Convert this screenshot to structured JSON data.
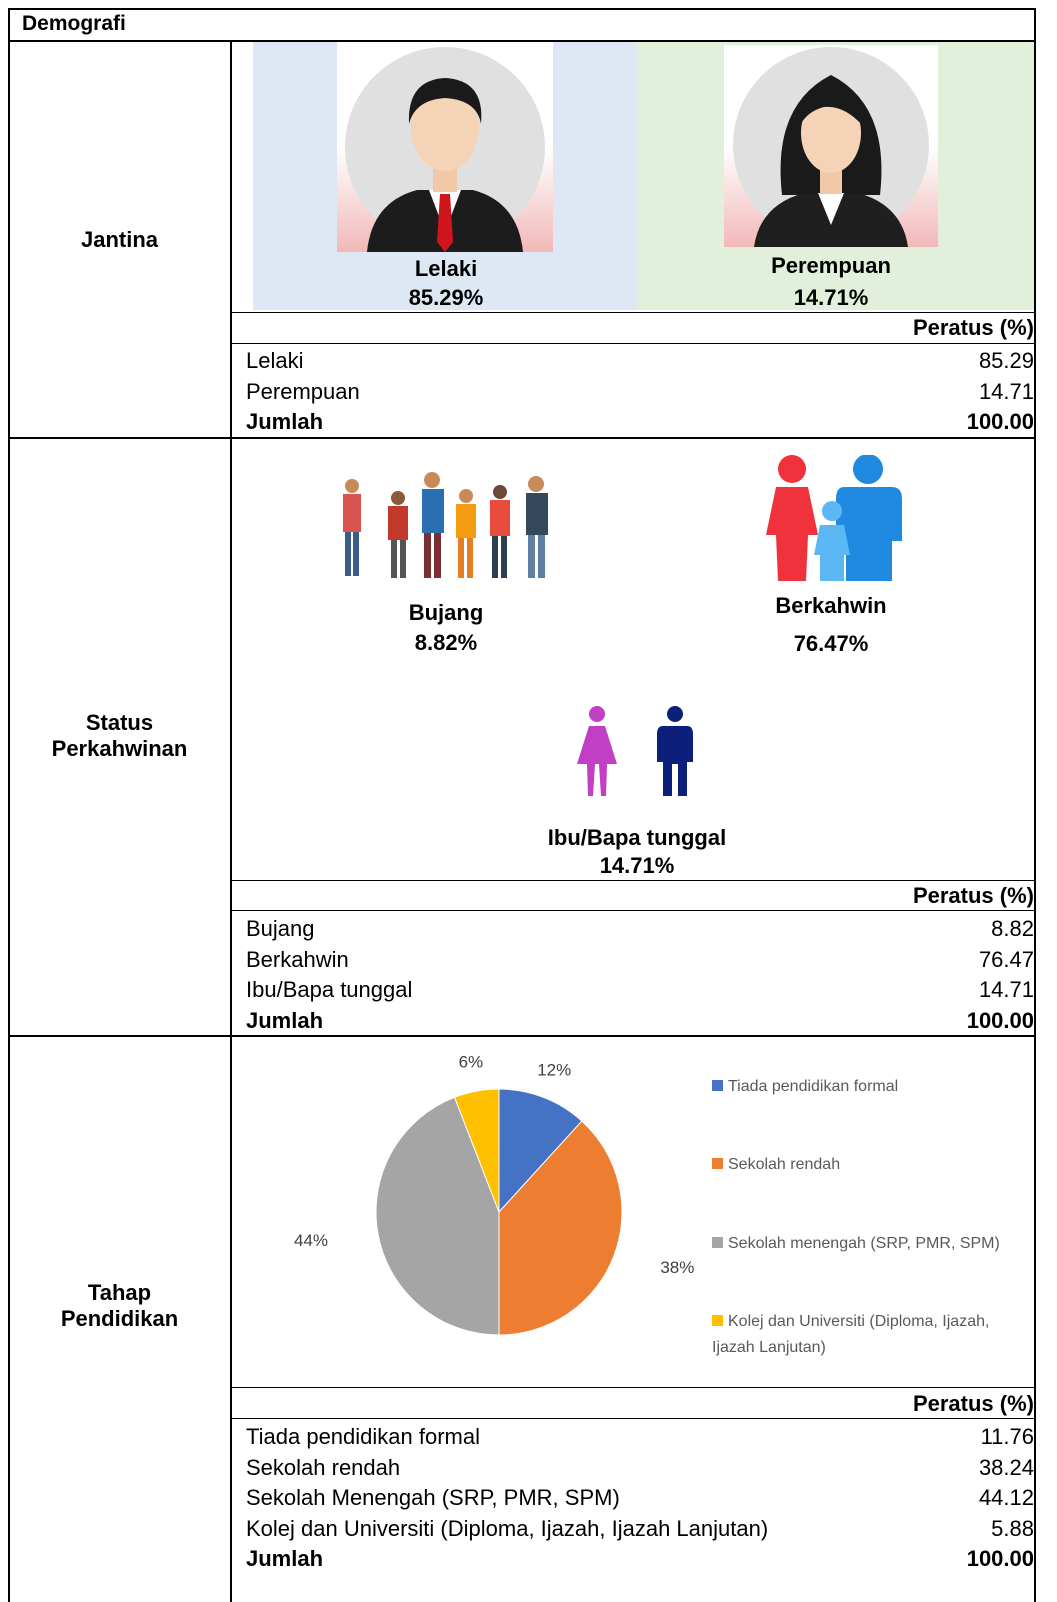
{
  "header": "Demografi",
  "sections": [
    {
      "label": "Jantina",
      "items": [
        {
          "label": "Lelaki",
          "percent": "85.29%"
        },
        {
          "label": "Perempuan",
          "percent": "14.71%"
        }
      ],
      "table": {
        "header": "Peratus (%)",
        "rows": [
          [
            "Lelaki",
            "85.29"
          ],
          [
            "Perempuan",
            "14.71"
          ]
        ],
        "total": [
          "Jumlah",
          "100.00"
        ]
      }
    },
    {
      "label": "Status Perkahwinan",
      "items": [
        {
          "label": "Bujang",
          "percent": "8.82%"
        },
        {
          "label": "Berkahwin",
          "percent": "76.47%"
        },
        {
          "label": "Ibu/Bapa tunggal",
          "percent": "14.71%"
        }
      ],
      "table": {
        "header": "Peratus (%)",
        "rows": [
          [
            "Bujang",
            "8.82"
          ],
          [
            "Berkahwin",
            "76.47"
          ],
          [
            "Ibu/Bapa tunggal",
            "14.71"
          ]
        ],
        "total": [
          "Jumlah",
          "100.00"
        ]
      }
    },
    {
      "label": "Tahap Pendidikan",
      "table": {
        "header": "Peratus (%)",
        "rows": [
          [
            "Tiada pendidikan formal",
            "11.76"
          ],
          [
            "Sekolah rendah",
            "38.24"
          ],
          [
            "Sekolah Menengah (SRP, PMR, SPM)",
            "44.12"
          ],
          [
            "Kolej dan Universiti (Diploma, Ijazah, Ijazah Lanjutan)",
            "5.88"
          ]
        ],
        "total": [
          "Jumlah",
          "100.00"
        ]
      }
    }
  ],
  "chart_data": {
    "type": "pie",
    "categories": [
      "Tiada pendidikan formal",
      "Sekolah rendah",
      "Sekolah menengah (SRP, PMR, SPM)",
      "Kolej dan Universiti (Diploma, Ijazah, Ijazah Lanjutan)"
    ],
    "values": [
      11.76,
      38.24,
      44.12,
      5.88
    ],
    "value_labels": [
      "12%",
      "38%",
      "44%",
      "6%"
    ],
    "colors": [
      "#4472c4",
      "#ed7d31",
      "#a5a5a5",
      "#ffc000"
    ],
    "legend": "right"
  }
}
